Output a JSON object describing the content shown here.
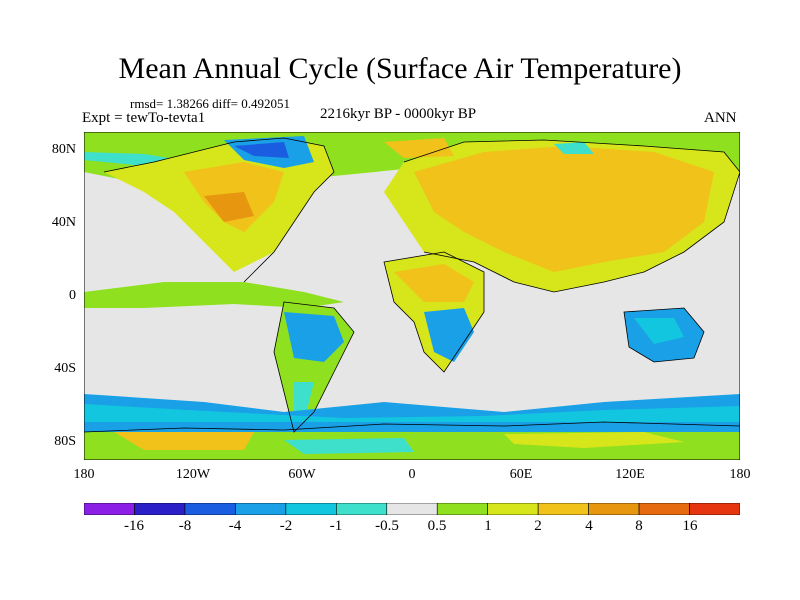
{
  "title": "Mean Annual Cycle (Surface Air Temperature)",
  "stats": "rmsd= 1.38266 diff= 0.492051",
  "experiment": "Expt = tewTo-tevta1",
  "period": "2216kyr BP - 0000kyr BP",
  "season": "ANN",
  "y_axis_labels": [
    "80N",
    "40N",
    "0",
    "40S",
    "80S"
  ],
  "x_axis_labels": [
    "180",
    "120W",
    "60W",
    "0",
    "60E",
    "120E",
    "180"
  ],
  "colorbar": {
    "colors": [
      "#8b1fe6",
      "#2b1fc8",
      "#1a5de0",
      "#1aa0e6",
      "#12c6e0",
      "#3ee0cc",
      "#e6e6e6",
      "#8fe01f",
      "#d6e61a",
      "#f0c21a",
      "#e6960f",
      "#e66a0f",
      "#e6360f"
    ],
    "labels": [
      "-16",
      "-8",
      "-4",
      "-2",
      "-1",
      "-0.5",
      "0.5",
      "1",
      "2",
      "4",
      "8",
      "16"
    ]
  }
}
